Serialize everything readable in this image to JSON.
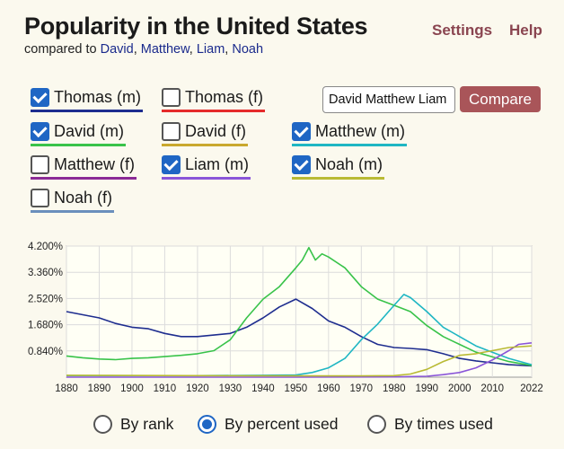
{
  "header": {
    "title": "Popularity in the United States",
    "compared_prefix": "compared to",
    "compared_names": [
      "David",
      "Matthew",
      "Liam",
      "Noah"
    ],
    "settings_label": "Settings",
    "help_label": "Help"
  },
  "checkboxes": [
    {
      "label": "Thomas (m)",
      "checked": true,
      "color": "#1e2d8f"
    },
    {
      "label": "Thomas (f)",
      "checked": false,
      "color": "#e52b2b"
    },
    {
      "label": "David (m)",
      "checked": true,
      "color": "#39c34a"
    },
    {
      "label": "David (f)",
      "checked": false,
      "color": "#c9a82e"
    },
    {
      "label": "Matthew (m)",
      "checked": true,
      "color": "#1fb6c3"
    },
    {
      "label": "Matthew (f)",
      "checked": false,
      "color": "#8b2a96"
    },
    {
      "label": "Liam (m)",
      "checked": true,
      "color": "#8a55d8"
    },
    {
      "label": "Noah (m)",
      "checked": true,
      "color": "#b9ba34"
    },
    {
      "label": "Noah (f)",
      "checked": false,
      "color": "#6a8fbc"
    }
  ],
  "search": {
    "value": "David Matthew Liam Noah"
  },
  "compare_label": "Compare",
  "view_options": [
    {
      "label": "By rank",
      "selected": false
    },
    {
      "label": "By percent used",
      "selected": true
    },
    {
      "label": "By times used",
      "selected": false
    }
  ],
  "chart_data": {
    "type": "line",
    "title": "",
    "xlabel": "",
    "ylabel": "",
    "xlim": [
      1880,
      2022
    ],
    "ylim": [
      0,
      4.2
    ],
    "x_ticks": [
      "1880",
      "1890",
      "1900",
      "1910",
      "1920",
      "1930",
      "1940",
      "1950",
      "1960",
      "1970",
      "1980",
      "1990",
      "2000",
      "2010",
      "2022"
    ],
    "y_ticks": [
      "4.200%",
      "3.360%",
      "2.520%",
      "1.680%",
      "0.840%"
    ],
    "series": [
      {
        "name": "Thomas (m)",
        "color": "#1e2d8f",
        "x": [
          1880,
          1885,
          1890,
          1895,
          1900,
          1905,
          1910,
          1915,
          1920,
          1925,
          1930,
          1935,
          1940,
          1945,
          1950,
          1955,
          1960,
          1965,
          1970,
          1975,
          1980,
          1985,
          1990,
          1995,
          2000,
          2005,
          2010,
          2015,
          2022
        ],
        "y": [
          2.1,
          2.0,
          1.9,
          1.72,
          1.6,
          1.55,
          1.4,
          1.3,
          1.3,
          1.35,
          1.4,
          1.6,
          1.9,
          2.25,
          2.5,
          2.2,
          1.8,
          1.6,
          1.3,
          1.05,
          0.95,
          0.92,
          0.88,
          0.75,
          0.6,
          0.52,
          0.46,
          0.4,
          0.36
        ]
      },
      {
        "name": "David (m)",
        "color": "#39c34a",
        "x": [
          1880,
          1885,
          1890,
          1895,
          1900,
          1905,
          1910,
          1915,
          1920,
          1925,
          1930,
          1935,
          1940,
          1945,
          1950,
          1952,
          1954,
          1956,
          1958,
          1960,
          1965,
          1970,
          1975,
          1980,
          1985,
          1990,
          1995,
          2000,
          2005,
          2010,
          2015,
          2022
        ],
        "y": [
          0.68,
          0.62,
          0.58,
          0.56,
          0.6,
          0.62,
          0.66,
          0.7,
          0.75,
          0.85,
          1.2,
          1.9,
          2.5,
          2.9,
          3.5,
          3.75,
          4.15,
          3.75,
          3.95,
          3.85,
          3.5,
          2.9,
          2.5,
          2.3,
          2.1,
          1.65,
          1.3,
          1.05,
          0.8,
          0.65,
          0.5,
          0.37
        ]
      },
      {
        "name": "Matthew (m)",
        "color": "#1fb6c3",
        "x": [
          1880,
          1900,
          1920,
          1940,
          1950,
          1955,
          1960,
          1965,
          1970,
          1975,
          1980,
          1983,
          1985,
          1990,
          1995,
          2000,
          2005,
          2010,
          2015,
          2022
        ],
        "y": [
          0.05,
          0.05,
          0.05,
          0.06,
          0.07,
          0.15,
          0.3,
          0.6,
          1.2,
          1.7,
          2.3,
          2.65,
          2.55,
          2.1,
          1.6,
          1.3,
          1.0,
          0.8,
          0.6,
          0.4
        ]
      },
      {
        "name": "Liam (m)",
        "color": "#8a55d8",
        "x": [
          1880,
          1950,
          1980,
          1990,
          1995,
          2000,
          2005,
          2010,
          2015,
          2018,
          2022
        ],
        "y": [
          0,
          0,
          0.01,
          0.03,
          0.08,
          0.15,
          0.3,
          0.55,
          0.85,
          1.05,
          1.1
        ]
      },
      {
        "name": "Noah (m)",
        "color": "#b9ba34",
        "x": [
          1880,
          1950,
          1970,
          1980,
          1985,
          1990,
          1995,
          2000,
          2005,
          2010,
          2015,
          2022
        ],
        "y": [
          0.06,
          0.04,
          0.04,
          0.05,
          0.1,
          0.25,
          0.5,
          0.7,
          0.75,
          0.85,
          0.95,
          1.0
        ]
      }
    ]
  }
}
